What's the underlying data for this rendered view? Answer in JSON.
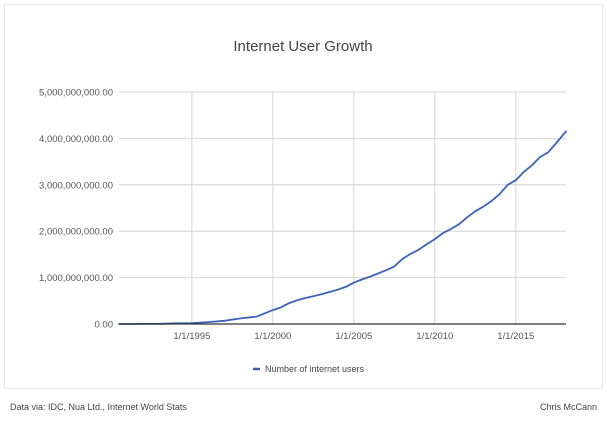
{
  "colors": {
    "line": "#3b63b5",
    "grid": "#d4d4d4",
    "axis": "#333333",
    "label": "#555555",
    "title": "#444444"
  },
  "chart_data": {
    "type": "line",
    "title": "Internet User Growth",
    "xlabel": "",
    "ylabel": "",
    "ylim": [
      0,
      5000000000
    ],
    "xlim": [
      1990.5,
      2018.1
    ],
    "yticks": [
      {
        "value": 0,
        "label": "0.00"
      },
      {
        "value": 1000000000,
        "label": "1,000,000,000.00"
      },
      {
        "value": 2000000000,
        "label": "2,000,000,000.00"
      },
      {
        "value": 3000000000,
        "label": "3,000,000,000.00"
      },
      {
        "value": 4000000000,
        "label": "4,000,000,000.00"
      },
      {
        "value": 5000000000,
        "label": "5,000,000,000.00"
      }
    ],
    "xticks": [
      {
        "value": 1995,
        "label": "1/1/1995"
      },
      {
        "value": 2000,
        "label": "1/1/2000"
      },
      {
        "value": 2005,
        "label": "1/1/2005"
      },
      {
        "value": 2010,
        "label": "1/1/2010"
      },
      {
        "value": 2015,
        "label": "1/1/2015"
      }
    ],
    "grid": true,
    "legend_position": "bottom",
    "series": [
      {
        "name": "Number of internet users",
        "x": [
          1990.5,
          1992,
          1993,
          1994,
          1995,
          1996,
          1997,
          1998,
          1999,
          2000,
          2000.5,
          2001,
          2001.5,
          2002,
          2002.5,
          2003,
          2003.5,
          2004,
          2004.5,
          2005,
          2005.5,
          2006,
          2006.5,
          2007,
          2007.5,
          2008,
          2008.5,
          2009,
          2009.5,
          2010,
          2010.5,
          2011,
          2011.5,
          2012,
          2012.5,
          2013,
          2013.5,
          2014,
          2014.5,
          2015,
          2015.5,
          2016,
          2016.5,
          2017,
          2017.5,
          2018.1
        ],
        "values": [
          0,
          2000000,
          4000000,
          15000000,
          20000000,
          40000000,
          70000000,
          120000000,
          160000000,
          300000000,
          360000000,
          450000000,
          510000000,
          560000000,
          600000000,
          640000000,
          690000000,
          740000000,
          800000000,
          890000000,
          960000000,
          1020000000,
          1090000000,
          1160000000,
          1240000000,
          1400000000,
          1510000000,
          1600000000,
          1720000000,
          1830000000,
          1960000000,
          2050000000,
          2150000000,
          2300000000,
          2430000000,
          2530000000,
          2650000000,
          2800000000,
          3000000000,
          3100000000,
          3280000000,
          3420000000,
          3600000000,
          3700000000,
          3900000000,
          4150000000
        ]
      }
    ]
  },
  "footer": {
    "source": "Data via: IDC, Nua Ltd., Internet World Stats",
    "author": "Chris McCann"
  }
}
